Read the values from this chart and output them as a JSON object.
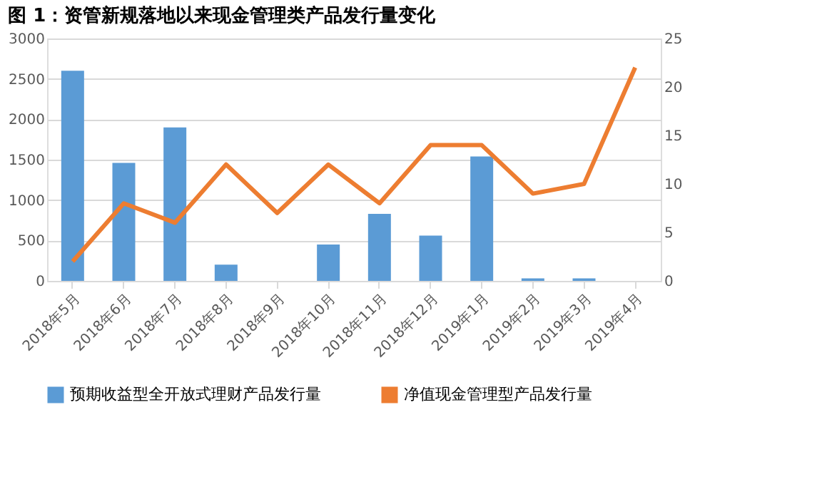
{
  "chart_data": {
    "type": "bar",
    "title": "图 1：资管新规落地以来现金管理类产品发行量变化",
    "categories": [
      "2018年5月",
      "2018年6月",
      "2018年7月",
      "2018年8月",
      "2018年9月",
      "2018年10月",
      "2018年11月",
      "2018年12月",
      "2019年1月",
      "2019年2月",
      "2019年3月",
      "2019年4月"
    ],
    "series": [
      {
        "name": "预期收益型全开放式理财产品发行量",
        "color": "#5b9bd5",
        "values": [
          2600,
          1460,
          1900,
          200,
          0,
          450,
          830,
          560,
          1540,
          30,
          30,
          0
        ]
      },
      {
        "name": "净值现金管理型产品发行量",
        "color": "#ed7d31",
        "type": "line",
        "axis": "y2",
        "values": [
          2,
          8,
          6,
          12,
          7,
          12,
          8,
          14,
          14,
          9,
          10,
          22
        ]
      }
    ],
    "ylim": [
      0,
      3000
    ],
    "yticks": [
      0,
      500,
      1000,
      1500,
      2000,
      2500,
      3000
    ],
    "y2lim": [
      0,
      25
    ],
    "y2ticks": [
      0,
      5,
      10,
      15,
      20,
      25
    ],
    "grid": "y",
    "legend": "bottom"
  }
}
